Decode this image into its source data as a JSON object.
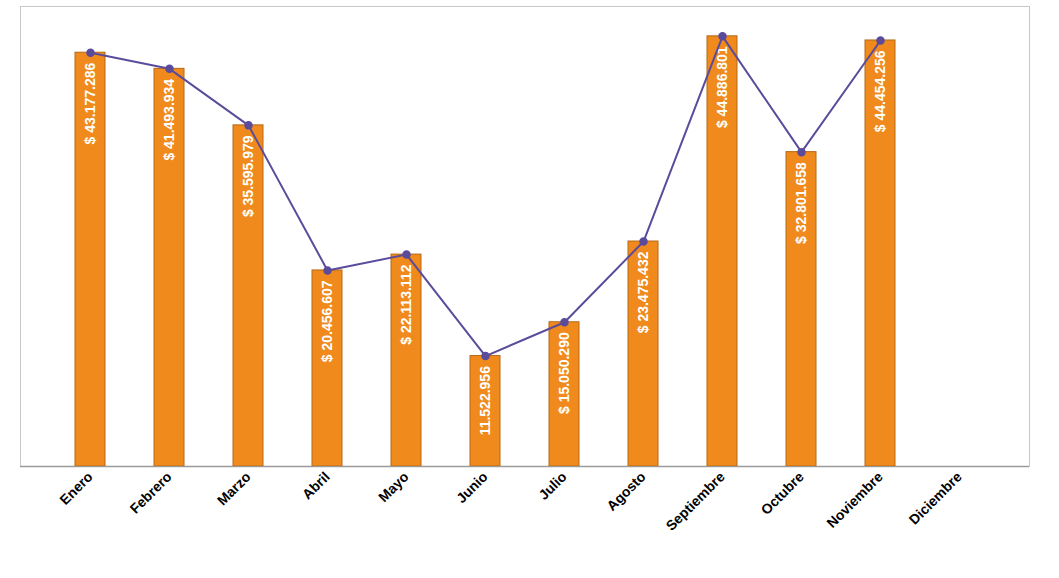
{
  "chart_data": {
    "type": "bar",
    "categories": [
      "Enero",
      "Febrero",
      "Marzo",
      "Abril",
      "Mayo",
      "Junio",
      "Julio",
      "Agosto",
      "Septiembre",
      "Octubre",
      "Noviembre",
      "Diciembre"
    ],
    "series": [
      {
        "type": "bar",
        "color": "#f08a1c",
        "values": [
          43177286,
          41493934,
          35595979,
          20456607,
          22113112,
          11522956,
          15050290,
          23475432,
          44886801,
          32801658,
          44454256,
          null
        ],
        "value_labels": [
          "$ 43.177.286",
          "$ 41.493.934",
          "$ 35.595.979",
          "$ 20.456.607",
          "$ 22.113.112",
          "11.522.956",
          "$ 15.050.290",
          "$ 23.475.432",
          "$ 44.886.801",
          "$ 32.801.658",
          "$ 44.454.256",
          null
        ]
      },
      {
        "type": "line",
        "color": "#5b4b9b",
        "marker": "circle",
        "values": [
          43177286,
          41493934,
          35595979,
          20456607,
          22113112,
          11522956,
          15050290,
          23475432,
          44886801,
          32801658,
          44454256,
          null
        ]
      }
    ],
    "ylim": [
      0,
      48000000
    ],
    "data_labels": true,
    "tick_labels": "x",
    "grid": false
  }
}
